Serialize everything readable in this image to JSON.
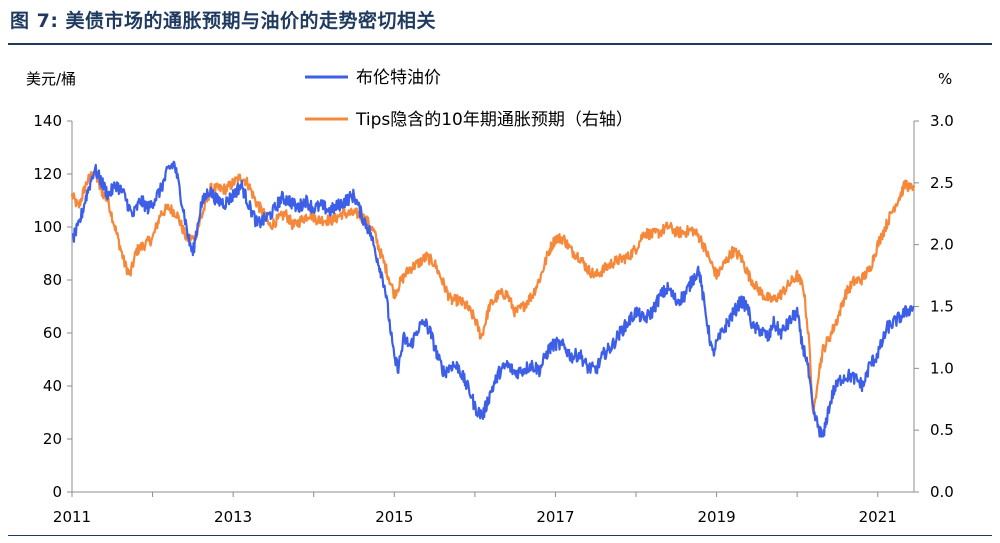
{
  "figure_title": "图 7: 美债市场的通胀预期与油价的走势密切相关",
  "colors": {
    "blue": "#3d5ee6",
    "orange": "#f5883a",
    "axis": "#8c8c8c",
    "title": "#1f3a5f"
  },
  "chart_data": {
    "type": "line",
    "title": "",
    "left_unit": "美元/桶",
    "right_unit": "%",
    "x_ticks": [
      {
        "label": "2011",
        "value": 2011
      },
      {
        "label": "2013",
        "value": 2013
      },
      {
        "label": "2015",
        "value": 2015
      },
      {
        "label": "2017",
        "value": 2017
      },
      {
        "label": "2019",
        "value": 2019
      },
      {
        "label": "2021",
        "value": 2021
      }
    ],
    "xlim": [
      2011.0,
      2021.45
    ],
    "y_left": {
      "lim": [
        0,
        140
      ],
      "ticks": [
        "0",
        "20",
        "40",
        "60",
        "80",
        "100",
        "120",
        "140"
      ]
    },
    "y_right": {
      "lim": [
        0,
        3
      ],
      "ticks": [
        "0.0",
        "0.5",
        "1.0",
        "1.5",
        "2.0",
        "2.5",
        "3.0"
      ]
    },
    "legend": [
      "布伦特油价",
      "Tips隐含的10年期通胀预期（右轴）"
    ],
    "series": [
      {
        "name": "布伦特油价",
        "axis": "left",
        "color": "#3d5ee6",
        "points": [
          [
            2011.0,
            95
          ],
          [
            2011.08,
            100
          ],
          [
            2011.18,
            112
          ],
          [
            2011.28,
            122
          ],
          [
            2011.35,
            118
          ],
          [
            2011.45,
            112
          ],
          [
            2011.55,
            116
          ],
          [
            2011.65,
            112
          ],
          [
            2011.75,
            104
          ],
          [
            2011.85,
            110
          ],
          [
            2011.95,
            107
          ],
          [
            2012.1,
            114
          ],
          [
            2012.2,
            122
          ],
          [
            2012.27,
            124
          ],
          [
            2012.35,
            112
          ],
          [
            2012.45,
            95
          ],
          [
            2012.5,
            90
          ],
          [
            2012.6,
            108
          ],
          [
            2012.7,
            114
          ],
          [
            2012.8,
            110
          ],
          [
            2012.9,
            109
          ],
          [
            2013.0,
            112
          ],
          [
            2013.1,
            116
          ],
          [
            2013.2,
            108
          ],
          [
            2013.3,
            101
          ],
          [
            2013.4,
            103
          ],
          [
            2013.5,
            106
          ],
          [
            2013.6,
            111
          ],
          [
            2013.7,
            110
          ],
          [
            2013.8,
            107
          ],
          [
            2013.9,
            110
          ],
          [
            2014.0,
            107
          ],
          [
            2014.1,
            108
          ],
          [
            2014.2,
            106
          ],
          [
            2014.3,
            108
          ],
          [
            2014.4,
            110
          ],
          [
            2014.5,
            112
          ],
          [
            2014.6,
            104
          ],
          [
            2014.7,
            98
          ],
          [
            2014.8,
            87
          ],
          [
            2014.88,
            78
          ],
          [
            2014.95,
            62
          ],
          [
            2015.0,
            50
          ],
          [
            2015.05,
            47
          ],
          [
            2015.12,
            58
          ],
          [
            2015.2,
            55
          ],
          [
            2015.3,
            62
          ],
          [
            2015.38,
            64
          ],
          [
            2015.45,
            60
          ],
          [
            2015.55,
            50
          ],
          [
            2015.62,
            45
          ],
          [
            2015.72,
            48
          ],
          [
            2015.8,
            47
          ],
          [
            2015.9,
            40
          ],
          [
            2015.95,
            37
          ],
          [
            2016.0,
            32
          ],
          [
            2016.05,
            30
          ],
          [
            2016.1,
            29
          ],
          [
            2016.2,
            38
          ],
          [
            2016.3,
            45
          ],
          [
            2016.4,
            48
          ],
          [
            2016.5,
            45
          ],
          [
            2016.6,
            46
          ],
          [
            2016.7,
            48
          ],
          [
            2016.8,
            46
          ],
          [
            2016.92,
            54
          ],
          [
            2017.0,
            56
          ],
          [
            2017.1,
            55
          ],
          [
            2017.2,
            51
          ],
          [
            2017.3,
            52
          ],
          [
            2017.4,
            47
          ],
          [
            2017.5,
            46
          ],
          [
            2017.6,
            52
          ],
          [
            2017.7,
            55
          ],
          [
            2017.8,
            60
          ],
          [
            2017.9,
            64
          ],
          [
            2018.0,
            68
          ],
          [
            2018.1,
            65
          ],
          [
            2018.2,
            68
          ],
          [
            2018.3,
            74
          ],
          [
            2018.4,
            77
          ],
          [
            2018.5,
            72
          ],
          [
            2018.6,
            74
          ],
          [
            2018.7,
            80
          ],
          [
            2018.78,
            84
          ],
          [
            2018.85,
            70
          ],
          [
            2018.95,
            52
          ],
          [
            2019.0,
            56
          ],
          [
            2019.1,
            62
          ],
          [
            2019.2,
            67
          ],
          [
            2019.3,
            72
          ],
          [
            2019.38,
            70
          ],
          [
            2019.45,
            62
          ],
          [
            2019.55,
            61
          ],
          [
            2019.65,
            58
          ],
          [
            2019.7,
            64
          ],
          [
            2019.8,
            60
          ],
          [
            2019.9,
            64
          ],
          [
            2020.0,
            68
          ],
          [
            2020.05,
            57
          ],
          [
            2020.12,
            50
          ],
          [
            2020.2,
            30
          ],
          [
            2020.27,
            24
          ],
          [
            2020.32,
            20
          ],
          [
            2020.38,
            30
          ],
          [
            2020.45,
            38
          ],
          [
            2020.55,
            43
          ],
          [
            2020.65,
            44
          ],
          [
            2020.75,
            42
          ],
          [
            2020.82,
            40
          ],
          [
            2020.9,
            48
          ],
          [
            2020.98,
            51
          ],
          [
            2021.05,
            56
          ],
          [
            2021.12,
            62
          ],
          [
            2021.2,
            64
          ],
          [
            2021.28,
            66
          ],
          [
            2021.35,
            68
          ],
          [
            2021.45,
            70
          ]
        ]
      },
      {
        "name": "Tips隐含的10年期通胀预期（右轴）",
        "axis": "right",
        "color": "#f5883a",
        "points": [
          [
            2011.0,
            2.4
          ],
          [
            2011.08,
            2.3
          ],
          [
            2011.18,
            2.5
          ],
          [
            2011.28,
            2.6
          ],
          [
            2011.35,
            2.45
          ],
          [
            2011.45,
            2.35
          ],
          [
            2011.55,
            2.1
          ],
          [
            2011.65,
            1.85
          ],
          [
            2011.72,
            1.75
          ],
          [
            2011.8,
            1.95
          ],
          [
            2011.9,
            2.0
          ],
          [
            2012.0,
            2.05
          ],
          [
            2012.1,
            2.25
          ],
          [
            2012.2,
            2.3
          ],
          [
            2012.3,
            2.25
          ],
          [
            2012.42,
            2.05
          ],
          [
            2012.52,
            2.05
          ],
          [
            2012.62,
            2.25
          ],
          [
            2012.72,
            2.45
          ],
          [
            2012.82,
            2.45
          ],
          [
            2012.92,
            2.45
          ],
          [
            2013.0,
            2.5
          ],
          [
            2013.1,
            2.55
          ],
          [
            2013.18,
            2.5
          ],
          [
            2013.28,
            2.35
          ],
          [
            2013.38,
            2.25
          ],
          [
            2013.45,
            2.15
          ],
          [
            2013.55,
            2.2
          ],
          [
            2013.65,
            2.25
          ],
          [
            2013.75,
            2.15
          ],
          [
            2013.85,
            2.2
          ],
          [
            2013.95,
            2.25
          ],
          [
            2014.05,
            2.2
          ],
          [
            2014.15,
            2.2
          ],
          [
            2014.25,
            2.2
          ],
          [
            2014.35,
            2.25
          ],
          [
            2014.45,
            2.25
          ],
          [
            2014.55,
            2.25
          ],
          [
            2014.65,
            2.2
          ],
          [
            2014.75,
            2.1
          ],
          [
            2014.82,
            1.95
          ],
          [
            2014.9,
            1.8
          ],
          [
            2015.0,
            1.6
          ],
          [
            2015.08,
            1.7
          ],
          [
            2015.18,
            1.8
          ],
          [
            2015.3,
            1.85
          ],
          [
            2015.4,
            1.9
          ],
          [
            2015.5,
            1.85
          ],
          [
            2015.6,
            1.7
          ],
          [
            2015.7,
            1.55
          ],
          [
            2015.8,
            1.55
          ],
          [
            2015.9,
            1.5
          ],
          [
            2016.0,
            1.4
          ],
          [
            2016.08,
            1.25
          ],
          [
            2016.18,
            1.5
          ],
          [
            2016.3,
            1.6
          ],
          [
            2016.4,
            1.6
          ],
          [
            2016.5,
            1.45
          ],
          [
            2016.6,
            1.5
          ],
          [
            2016.72,
            1.6
          ],
          [
            2016.82,
            1.75
          ],
          [
            2016.92,
            1.95
          ],
          [
            2017.0,
            2.05
          ],
          [
            2017.1,
            2.05
          ],
          [
            2017.2,
            1.95
          ],
          [
            2017.3,
            1.9
          ],
          [
            2017.4,
            1.8
          ],
          [
            2017.5,
            1.75
          ],
          [
            2017.6,
            1.8
          ],
          [
            2017.7,
            1.85
          ],
          [
            2017.8,
            1.88
          ],
          [
            2017.9,
            1.9
          ],
          [
            2018.0,
            1.97
          ],
          [
            2018.1,
            2.1
          ],
          [
            2018.2,
            2.08
          ],
          [
            2018.3,
            2.1
          ],
          [
            2018.4,
            2.15
          ],
          [
            2018.5,
            2.1
          ],
          [
            2018.6,
            2.1
          ],
          [
            2018.7,
            2.12
          ],
          [
            2018.8,
            2.05
          ],
          [
            2018.9,
            1.9
          ],
          [
            2019.0,
            1.75
          ],
          [
            2019.1,
            1.85
          ],
          [
            2019.2,
            1.95
          ],
          [
            2019.3,
            1.9
          ],
          [
            2019.4,
            1.75
          ],
          [
            2019.5,
            1.65
          ],
          [
            2019.6,
            1.58
          ],
          [
            2019.7,
            1.55
          ],
          [
            2019.8,
            1.6
          ],
          [
            2019.9,
            1.68
          ],
          [
            2020.0,
            1.75
          ],
          [
            2020.08,
            1.65
          ],
          [
            2020.15,
            1.2
          ],
          [
            2020.2,
            0.6
          ],
          [
            2020.25,
            0.9
          ],
          [
            2020.32,
            1.15
          ],
          [
            2020.4,
            1.25
          ],
          [
            2020.5,
            1.4
          ],
          [
            2020.6,
            1.6
          ],
          [
            2020.7,
            1.7
          ],
          [
            2020.8,
            1.72
          ],
          [
            2020.9,
            1.8
          ],
          [
            2021.0,
            2.0
          ],
          [
            2021.1,
            2.15
          ],
          [
            2021.2,
            2.3
          ],
          [
            2021.28,
            2.4
          ],
          [
            2021.35,
            2.5
          ],
          [
            2021.4,
            2.45
          ],
          [
            2021.45,
            2.48
          ]
        ]
      }
    ]
  }
}
